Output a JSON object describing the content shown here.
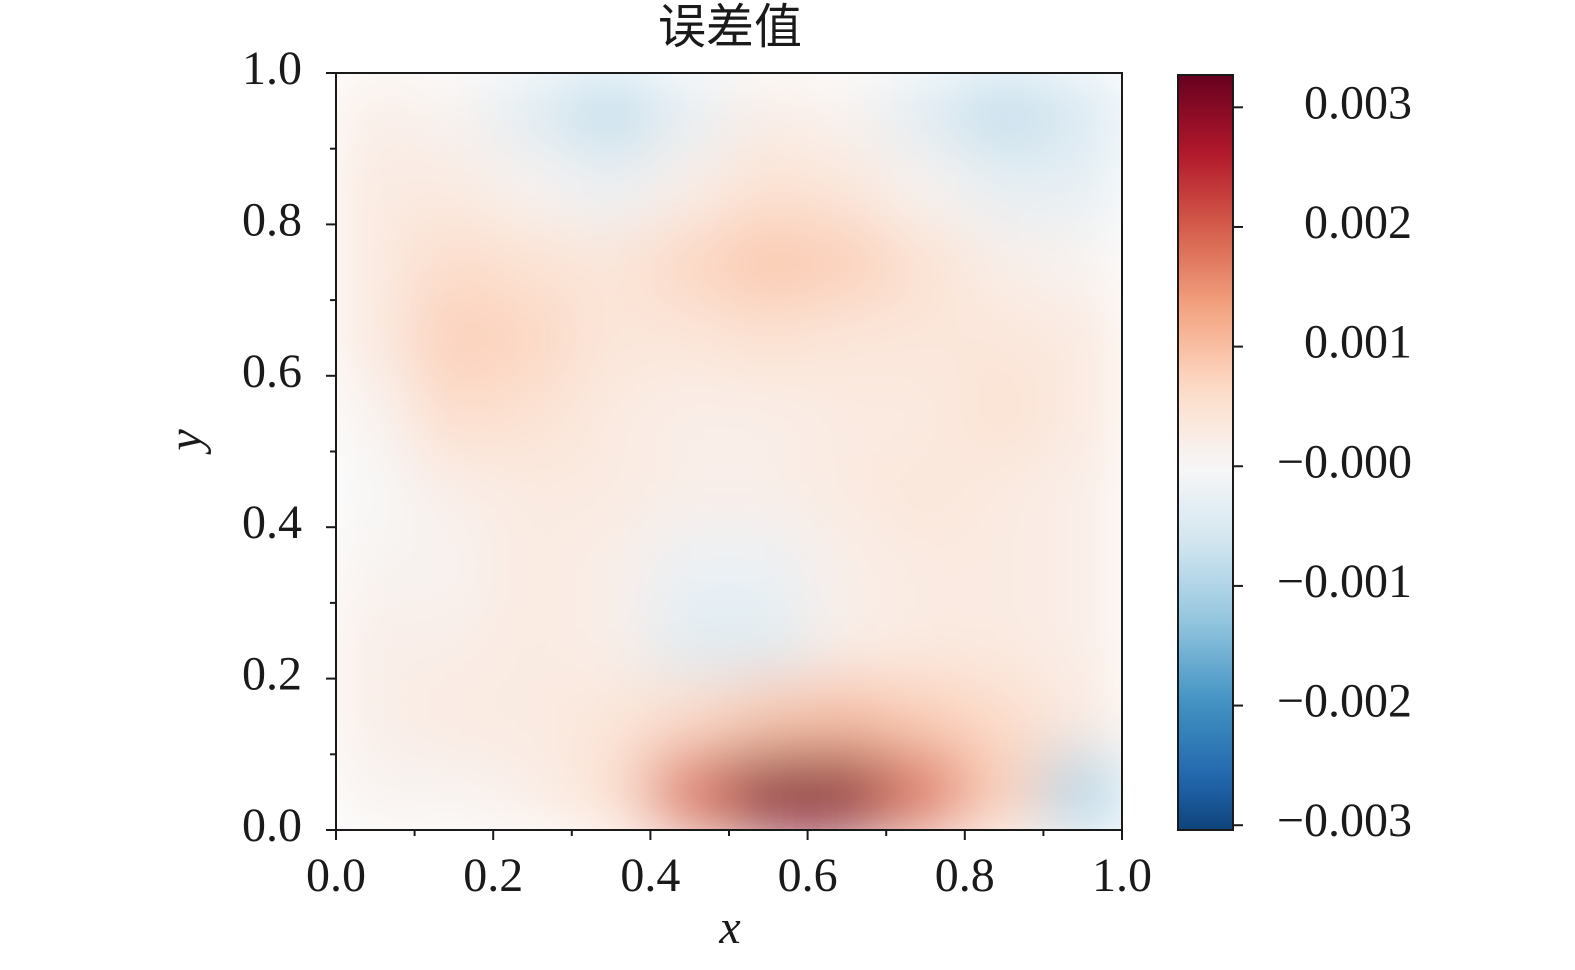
{
  "chart_data": {
    "type": "heatmap",
    "title": "误差值",
    "x_label": "x",
    "y_label": "y",
    "colormap": "RdBu_r",
    "x": [
      0.05,
      0.15,
      0.25,
      0.35,
      0.45,
      0.55,
      0.65,
      0.75,
      0.85,
      0.95
    ],
    "y": [
      0.05,
      0.15,
      0.25,
      0.35,
      0.45,
      0.55,
      0.65,
      0.75,
      0.85,
      0.95
    ],
    "z": [
      [
        0.0001,
        0.0001,
        0.0002,
        0.0005,
        0.0018,
        0.003,
        0.003,
        0.0018,
        0.0008,
        -0.001
      ],
      [
        0.0002,
        0.0003,
        0.0003,
        0.0004,
        0.0006,
        0.0009,
        0.001,
        0.0008,
        0.0006,
        0.0003
      ],
      [
        0.0002,
        0.0002,
        0.0003,
        0.0002,
        -0.0004,
        -0.0004,
        0.0002,
        0.0003,
        0.0003,
        0.0002
      ],
      [
        0.0001,
        0.0001,
        0.0003,
        0.0002,
        -0.0002,
        -0.0002,
        0.0002,
        0.0003,
        0.0003,
        0.0002
      ],
      [
        0,
        0.0002,
        0.0003,
        0.0003,
        0.0002,
        0.0002,
        0.0003,
        0.0004,
        0.0003,
        0.0002
      ],
      [
        0.0001,
        0.0006,
        0.0005,
        0.0003,
        0.0002,
        0.0002,
        0.0003,
        0.0003,
        0.0005,
        0.0003
      ],
      [
        0.0003,
        0.0008,
        0.0007,
        0.0004,
        0.0004,
        0.0005,
        0.0004,
        0.0004,
        0.0004,
        0.0003
      ],
      [
        0.0003,
        0.0006,
        0.0005,
        0.0004,
        0.0007,
        0.0009,
        0.0008,
        0.0005,
        0.0002,
        0.0001
      ],
      [
        0.0003,
        0.0003,
        0.0001,
        -0.0002,
        0.0002,
        0.0005,
        0.0004,
        0.0001,
        -0.0003,
        -0.0003
      ],
      [
        0.0002,
        0.0001,
        -0.0004,
        -0.0008,
        -0.0003,
        0.0002,
        0.0001,
        -0.0004,
        -0.0008,
        -0.0005
      ]
    ],
    "xlim": [
      {
        "value": 0,
        "label": "0.0"
      },
      {
        "value": 1,
        "label": "1.0"
      }
    ],
    "ylim": [
      {
        "value": 0,
        "label": "0.0"
      },
      {
        "value": 1,
        "label": "1.0"
      }
    ],
    "xticks": [
      {
        "value": 0,
        "label": "0.0"
      },
      0.2,
      0.4,
      0.6,
      0.8,
      {
        "value": 1,
        "label": "1.0"
      }
    ],
    "yticks": [
      {
        "value": 0,
        "label": "0.0"
      },
      0.2,
      0.4,
      0.6,
      0.8,
      {
        "value": 1,
        "label": "1.0"
      }
    ],
    "x_minor_ticks": [
      0.1,
      0.3,
      0.5,
      0.7,
      0.9
    ],
    "y_minor_ticks": [
      0.1,
      0.3,
      0.5,
      0.7,
      0.9
    ],
    "clim": [
      -0.00304,
      0.00327
    ],
    "cticks": [
      {
        "value": -0.003,
        "label": "−0.003"
      },
      {
        "value": -0.002,
        "label": "−0.002"
      },
      {
        "value": -0.001,
        "label": "−0.001"
      },
      {
        "value": 0,
        "label": "−0.000"
      },
      0.001,
      0.002,
      0.003
    ]
  }
}
